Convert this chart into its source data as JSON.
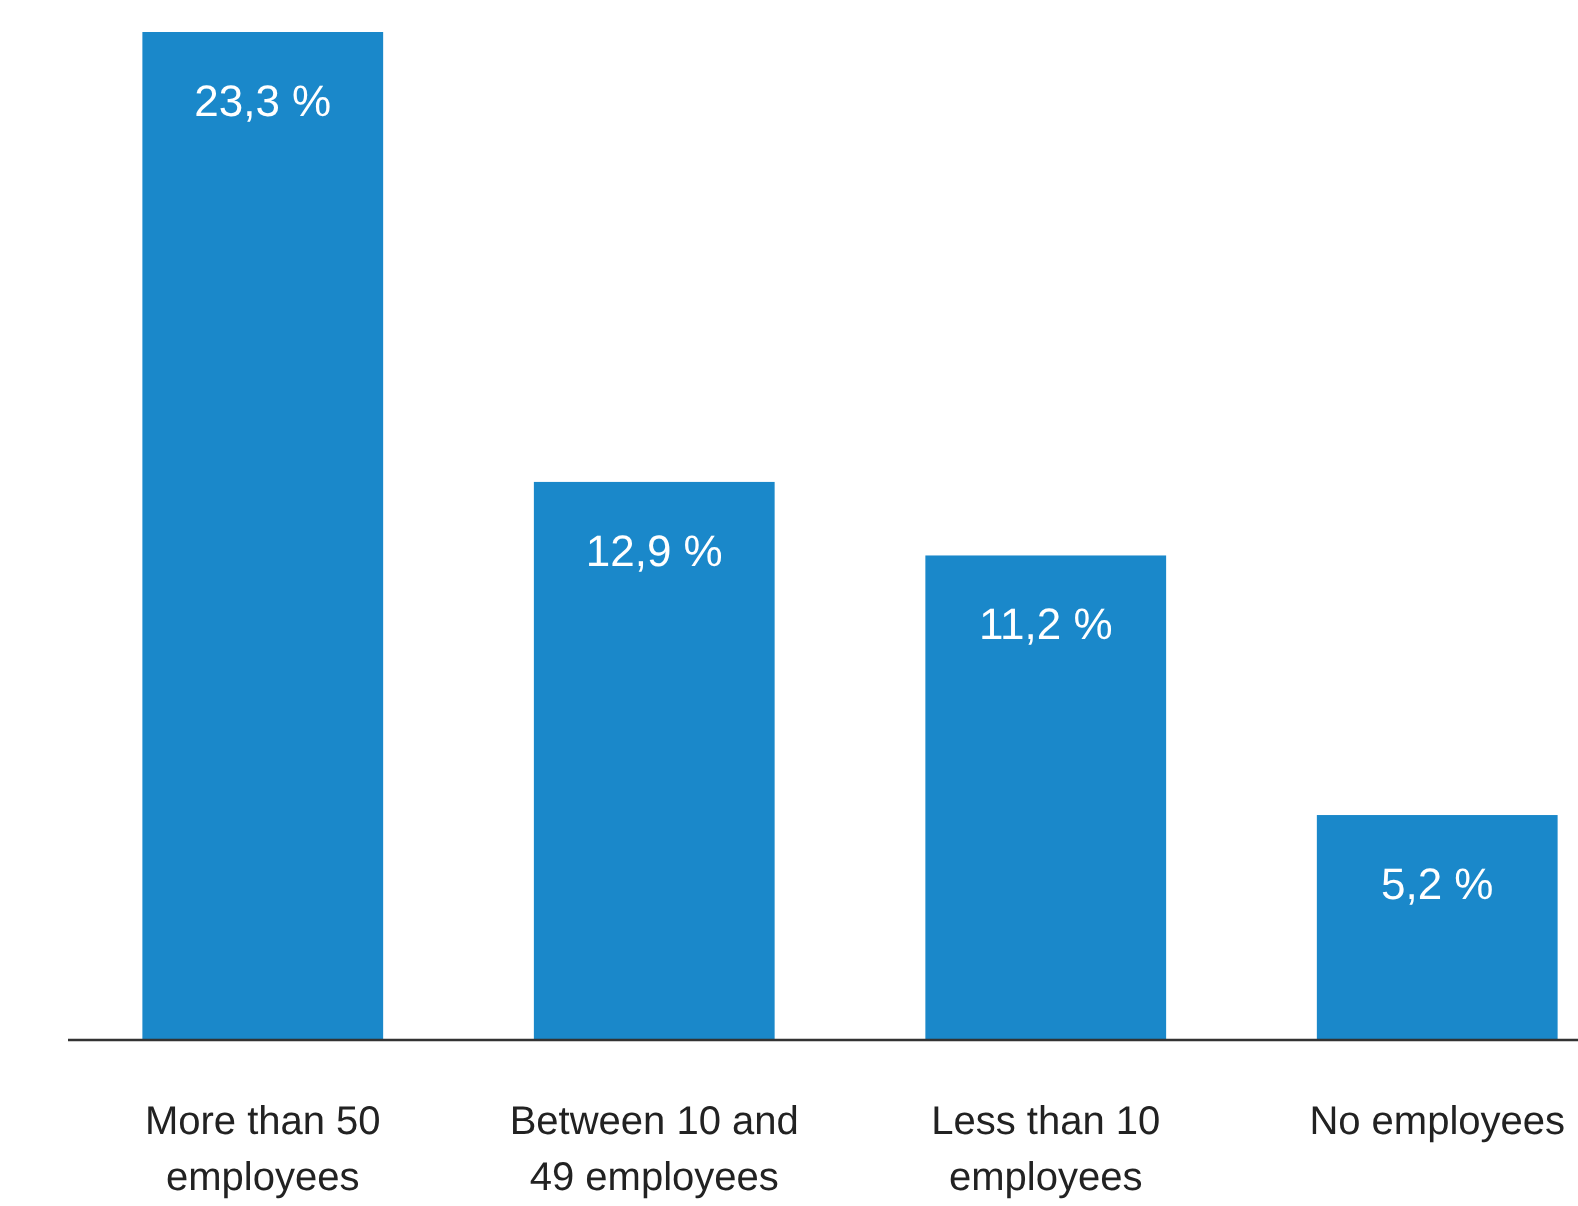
{
  "chart_data": {
    "type": "bar",
    "categories": [
      "More than 50 employees",
      "Between 10 and 49 employees",
      "Less than 10 employees",
      "No employees"
    ],
    "values": [
      23.3,
      12.9,
      11.2,
      5.2
    ],
    "value_labels": [
      "23,3 %",
      "12,9 %",
      "11,2 %",
      "5,2 %"
    ],
    "color": "#1a88ca"
  }
}
